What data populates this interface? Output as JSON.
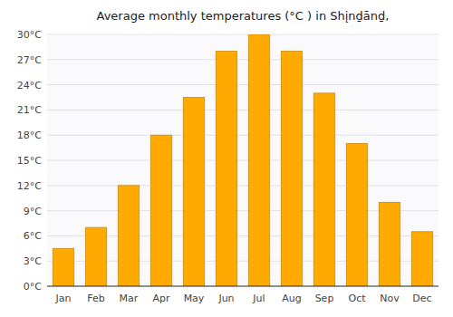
{
  "chart_data": {
    "type": "bar",
    "title": "Average monthly temperatures (°C ) in Shįnḏānḏ,",
    "categories": [
      "Jan",
      "Feb",
      "Mar",
      "Apr",
      "May",
      "Jun",
      "Jul",
      "Aug",
      "Sep",
      "Oct",
      "Nov",
      "Dec"
    ],
    "values": [
      4.5,
      7.0,
      12.0,
      18.0,
      22.5,
      28.0,
      30.0,
      28.0,
      23.0,
      17.0,
      10.0,
      6.5
    ],
    "color": "#FFAA00",
    "ylim": [
      0,
      30
    ],
    "yticks": [
      {
        "value": 0,
        "label": "0°C"
      },
      {
        "value": 3,
        "label": "3°C"
      },
      {
        "value": 6,
        "label": "6°C"
      },
      {
        "value": 9,
        "label": "9°C"
      },
      {
        "value": 12,
        "label": "12°C"
      },
      {
        "value": 15,
        "label": "15°C"
      },
      {
        "value": 18,
        "label": "18°C"
      },
      {
        "value": 21,
        "label": "21°C"
      },
      {
        "value": 24,
        "label": "24°C"
      },
      {
        "value": 27,
        "label": "27°C"
      },
      {
        "value": 30,
        "label": "30°C"
      }
    ],
    "grid": true
  }
}
